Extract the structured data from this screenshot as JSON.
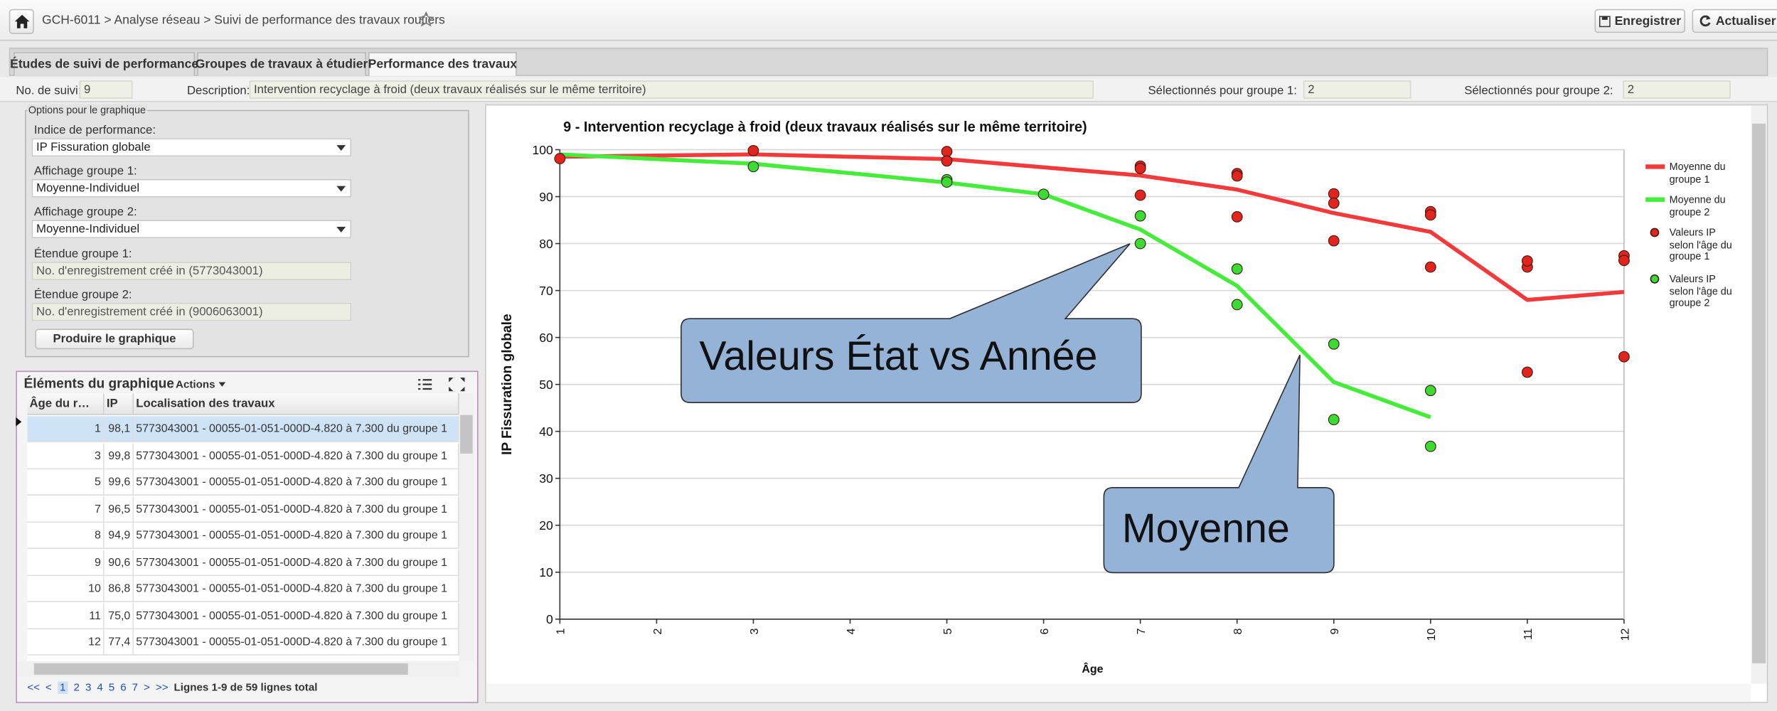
{
  "header": {
    "breadcrumb": "GCH-6011 > Analyse réseau > Suivi de performance des travaux routiers",
    "save": "Enregistrer",
    "refresh": "Actualiser"
  },
  "tabs": [
    "Études de suivi de performance",
    "Groupes de travaux à étudier",
    "Performance des travaux"
  ],
  "info": {
    "suivi_label": "No. de suivi:",
    "suivi_value": "9",
    "description_label": "Description:",
    "description_value": "Intervention recyclage à froid (deux travaux réalisés sur le même territoire)",
    "group1_label": "Sélectionnés pour groupe 1:",
    "group1_value": "2",
    "group2_label": "Sélectionnés pour groupe 2:",
    "group2_value": "2"
  },
  "options": {
    "legend": "Options pour le graphique",
    "fields": [
      {
        "label": "Indice de performance:",
        "value": "IP Fissuration globale"
      },
      {
        "label": "Affichage groupe 1:",
        "value": "Moyenne-Individuel"
      },
      {
        "label": "Affichage groupe 2:",
        "value": "Moyenne-Individuel"
      },
      {
        "label": "Étendue groupe 1:",
        "value": "No. d'enregistrement créé in (5773043001)"
      },
      {
        "label": "Étendue groupe 2:",
        "value": "No. d'enregistrement créé in (9006063001)"
      }
    ],
    "button": "Produire le graphique"
  },
  "elements": {
    "title": "Éléments du graphique",
    "actions": "Actions",
    "columns": [
      "Âge du r…",
      "IP",
      "Localisation des travaux"
    ],
    "rows": [
      [
        1,
        "98,1",
        "5773043001 -  00055-01-051-000D-4.820 à  7.300 du groupe 1"
      ],
      [
        3,
        "99,8",
        "5773043001 -  00055-01-051-000D-4.820 à  7.300 du groupe 1"
      ],
      [
        5,
        "99,6",
        "5773043001 -  00055-01-051-000D-4.820 à  7.300 du groupe 1"
      ],
      [
        7,
        "96,5",
        "5773043001 -  00055-01-051-000D-4.820 à  7.300 du groupe 1"
      ],
      [
        8,
        "94,9",
        "5773043001 -  00055-01-051-000D-4.820 à  7.300 du groupe 1"
      ],
      [
        9,
        "90,6",
        "5773043001 -  00055-01-051-000D-4.820 à  7.300 du groupe 1"
      ],
      [
        10,
        "86,8",
        "5773043001 -  00055-01-051-000D-4.820 à  7.300 du groupe 1"
      ],
      [
        11,
        "75,0",
        "5773043001 -  00055-01-051-000D-4.820 à  7.300 du groupe 1"
      ],
      [
        12,
        "77,4",
        "5773043001 -  00055-01-051-000D-4.820 à  7.300 du groupe 1"
      ]
    ],
    "pages": [
      "<<",
      "<",
      "1",
      "2",
      "3",
      "4",
      "5",
      "6",
      "7",
      ">",
      ">>"
    ],
    "summary": "Lignes 1-9 de 59 lignes total"
  },
  "chart_data": {
    "type": "line",
    "title": "9 - Intervention recyclage à froid (deux travaux réalisés sur le même territoire)",
    "x_label": "Âge",
    "y_label": "IP Fissuration globale",
    "xlim": [
      1,
      12
    ],
    "ylim": [
      0,
      100
    ],
    "xticks": [
      1,
      2,
      3,
      4,
      5,
      6,
      7,
      8,
      9,
      10,
      11,
      12
    ],
    "yticks": [
      0,
      10,
      20,
      30,
      40,
      50,
      60,
      70,
      80,
      90,
      100
    ],
    "grid": true,
    "legend": "right",
    "series": [
      {
        "name": "Moyenne du groupe 1",
        "type": "line",
        "color": "#f23a3a",
        "x": [
          1,
          3,
          5,
          7,
          8,
          9,
          10,
          11,
          12
        ],
        "values": [
          98.5,
          99,
          98,
          94.5,
          91.5,
          86.5,
          82.5,
          68,
          69.7
        ]
      },
      {
        "name": "Moyenne du groupe 2",
        "type": "line",
        "color": "#45ec3a",
        "x": [
          1,
          3,
          5,
          6,
          7,
          8,
          9,
          10
        ],
        "values": [
          99,
          97,
          93,
          90.5,
          83,
          71,
          50.5,
          43
        ]
      },
      {
        "name": "Valeurs IP selon l'âge du groupe 1",
        "type": "scatter",
        "color": "#e3241c",
        "x": [
          1,
          3,
          5,
          5,
          7,
          7,
          7,
          8,
          8,
          8,
          9,
          9,
          9,
          10,
          10,
          10,
          11,
          11,
          11,
          12,
          12,
          12
        ],
        "values": [
          98.1,
          99.8,
          99.6,
          97.6,
          96.5,
          96.0,
          90.3,
          94.9,
          94.4,
          85.7,
          90.6,
          88.6,
          80.6,
          86.8,
          86.1,
          75.0,
          75.0,
          76.3,
          52.6,
          77.4,
          76.4,
          55.9
        ]
      },
      {
        "name": "Valeurs IP selon l'âge du groupe 2",
        "type": "scatter",
        "color": "#3bdc32",
        "x": [
          3,
          5,
          5,
          6,
          7,
          7,
          8,
          8,
          9,
          9,
          10,
          10
        ],
        "values": [
          96.4,
          93.6,
          93.1,
          90.5,
          85.9,
          80.0,
          74.6,
          67.0,
          58.6,
          42.5,
          48.7,
          36.8
        ]
      }
    ]
  },
  "callouts": [
    "Valeurs État vs Année",
    "Moyenne"
  ]
}
